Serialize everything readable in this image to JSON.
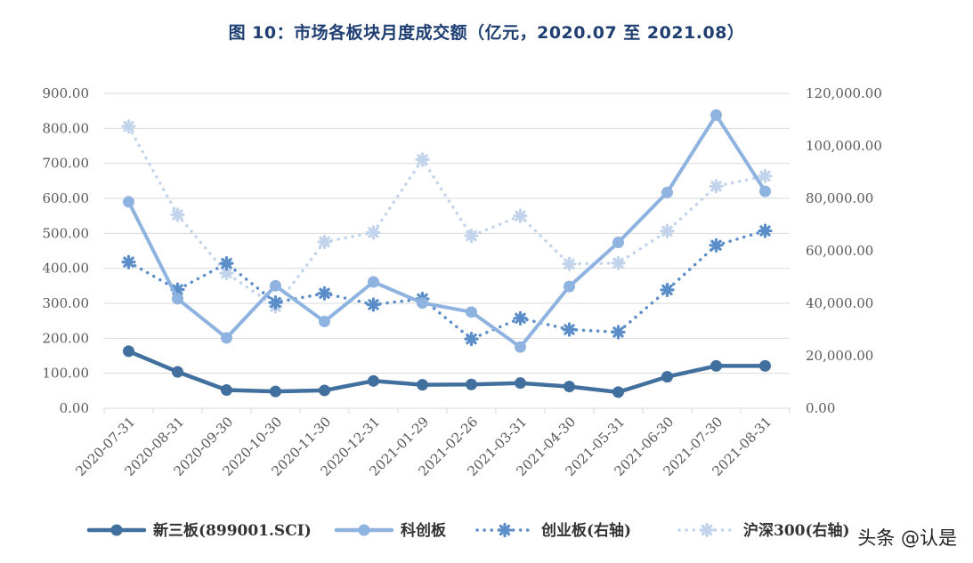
{
  "title": "图  10：市场各板块月度成交额（亿元，2020.07 至 2021.08）",
  "watermark": "头条 @认是",
  "chart_data": {
    "type": "line",
    "categories": [
      "2020-07-31",
      "2020-08-31",
      "2020-09-30",
      "2020-10-30",
      "2020-11-30",
      "2020-12-31",
      "2021-01-29",
      "2021-02-26",
      "2021-03-31",
      "2021-04-30",
      "2021-05-31",
      "2021-06-30",
      "2021-07-30",
      "2021-08-31"
    ],
    "left_axis": {
      "ylim": [
        0,
        900
      ],
      "ticks": [
        "0.00",
        "100.00",
        "200.00",
        "300.00",
        "400.00",
        "500.00",
        "600.00",
        "700.00",
        "800.00",
        "900.00"
      ]
    },
    "right_axis": {
      "ylim": [
        0,
        120000
      ],
      "ticks": [
        "0.00",
        "20,000.00",
        "40,000.00",
        "60,000.00",
        "80,000.00",
        "100,000.00",
        "120,000.00"
      ]
    },
    "grid": true,
    "legend_position": "bottom",
    "series": [
      {
        "name": "新三板(899001.SCI)",
        "axis": "left",
        "style": "solid",
        "color": "#41709f",
        "values": [
          163,
          104,
          52,
          48,
          51,
          78,
          67,
          68,
          72,
          62,
          46,
          90,
          121,
          121
        ]
      },
      {
        "name": "科创板",
        "axis": "left",
        "style": "solid",
        "color": "#8fb3e0",
        "values": [
          590,
          313,
          201,
          350,
          248,
          361,
          301,
          275,
          175,
          348,
          474,
          617,
          838,
          620
        ]
      },
      {
        "name": "创业板(右轴)",
        "axis": "right",
        "style": "dotted",
        "color": "#5b8ec8",
        "values": [
          55700,
          45200,
          55200,
          40300,
          43800,
          39500,
          41700,
          26400,
          34300,
          30000,
          29000,
          45100,
          62100,
          67600
        ]
      },
      {
        "name": "沪深300(右轴)",
        "axis": "right",
        "style": "dotted",
        "color": "#c2d4ec",
        "values": [
          107400,
          73700,
          51500,
          38800,
          63400,
          67000,
          94800,
          65700,
          73300,
          55000,
          55300,
          67500,
          84600,
          88500
        ]
      }
    ]
  }
}
